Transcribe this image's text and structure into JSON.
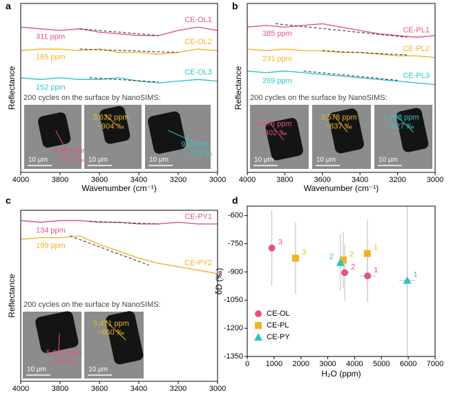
{
  "chart_data": [
    {
      "panel_label": "a",
      "type": "line",
      "xlabel": "Wavenumber (cm⁻¹)",
      "ylabel": "Reflectance",
      "xlim": [
        4000,
        3000
      ],
      "xticks": [
        4000,
        3800,
        3600,
        3400,
        3200,
        3000
      ],
      "ylim": [
        0,
        10
      ],
      "x": [
        4000,
        3900,
        3800,
        3700,
        3600,
        3500,
        3400,
        3300,
        3200,
        3100,
        3000
      ],
      "series": [
        {
          "name": "CE-OL1",
          "color": "#e0577a",
          "ppm_label": "311 ppm",
          "values": [
            8.6,
            8.5,
            8.4,
            8.5,
            8.3,
            8.2,
            8.1,
            8.1,
            8.4,
            8.6,
            8.4
          ],
          "baseline": {
            "x": [
              3700,
              3300
            ],
            "values": [
              8.5,
              8.1
            ]
          }
        },
        {
          "name": "CE-OL2",
          "color": "#f0b323",
          "ppm_label": "165 ppm",
          "values": [
            7.2,
            7.3,
            7.3,
            7.2,
            7.3,
            7.1,
            7.1,
            7.0,
            7.1,
            7.3,
            7.2
          ],
          "baseline": {
            "x": [
              3700,
              3200
            ],
            "values": [
              7.3,
              7.1
            ]
          }
        },
        {
          "name": "CE-OL3",
          "color": "#2ec4c8",
          "ppm_label": "152 ppm",
          "values": [
            5.6,
            5.5,
            5.6,
            5.5,
            5.5,
            5.6,
            5.4,
            5.3,
            5.4,
            5.5,
            5.4
          ],
          "baseline": {
            "x": [
              3650,
              3300
            ],
            "values": [
              5.6,
              5.35
            ]
          }
        }
      ],
      "inset_title": "200 cycles on the surface by NanoSIMS:",
      "insets": [
        {
          "ppm": "4,483 ppm",
          "delta": "−921 ‰",
          "scale_bar": "10 μm"
        },
        {
          "ppm": "3,632 ppm",
          "delta": "−904 ‰",
          "scale_bar": "10 μm"
        },
        {
          "ppm": "916 ppm",
          "delta": "−773 ‰",
          "scale_bar": "10 μm"
        }
      ]
    },
    {
      "panel_label": "b",
      "type": "line",
      "xlabel": "Wavenumber (cm⁻¹)",
      "ylabel": "Reflectance",
      "xlim": [
        4000,
        3000
      ],
      "xticks": [
        4000,
        3800,
        3600,
        3400,
        3200,
        3000
      ],
      "ylim": [
        0,
        10
      ],
      "x": [
        4000,
        3900,
        3800,
        3700,
        3600,
        3500,
        3400,
        3300,
        3200,
        3100,
        3000
      ],
      "series": [
        {
          "name": "CE-PL1",
          "color": "#e0577a",
          "ppm_label": "385 ppm",
          "values": [
            8.6,
            8.7,
            8.6,
            8.7,
            8.8,
            8.6,
            8.4,
            8.2,
            8.1,
            8.0,
            8.1
          ],
          "baseline": {
            "x": [
              3850,
              3150
            ],
            "values": [
              8.8,
              8.0
            ]
          }
        },
        {
          "name": "CE-PL2",
          "color": "#f0b323",
          "ppm_label": "231 ppm",
          "values": [
            7.3,
            7.2,
            7.3,
            7.2,
            7.2,
            7.1,
            7.1,
            7.0,
            6.9,
            6.9,
            6.8
          ],
          "baseline": {
            "x": [
              3600,
              3150
            ],
            "values": [
              7.2,
              6.95
            ]
          }
        },
        {
          "name": "CE-PL3",
          "color": "#2ec4c8",
          "ppm_label": "269 ppm",
          "values": [
            6.0,
            5.9,
            6.0,
            5.9,
            5.8,
            5.7,
            5.6,
            5.5,
            5.4,
            5.3,
            5.2
          ],
          "baseline": {
            "x": [
              3700,
              3200
            ],
            "values": [
              6.0,
              5.45
            ]
          }
        }
      ],
      "inset_title": "200 cycles on the surface by NanoSIMS:",
      "insets": [
        {
          "ppm": "4,476 ppm",
          "delta": "−802 ‰",
          "scale_bar": "10 μm"
        },
        {
          "ppm": "3,578 ppm",
          "delta": "−837 ‰",
          "scale_bar": "10 μm"
        },
        {
          "ppm": "1,798 ppm",
          "delta": "−827 ‰",
          "scale_bar": "10 μm"
        }
      ]
    },
    {
      "panel_label": "c",
      "type": "line",
      "xlabel": "Wavenumber (cm⁻¹)",
      "ylabel": "Reflectance",
      "xlim": [
        4000,
        3000
      ],
      "xticks": [
        4000,
        3800,
        3600,
        3400,
        3200,
        3000
      ],
      "ylim": [
        0,
        10
      ],
      "x": [
        4000,
        3900,
        3800,
        3700,
        3600,
        3500,
        3400,
        3300,
        3200,
        3100,
        3000
      ],
      "series": [
        {
          "name": "CE-PY1",
          "color": "#e0577a",
          "ppm_label": "134 ppm",
          "values": [
            9.4,
            9.3,
            9.4,
            9.4,
            9.3,
            9.3,
            9.2,
            9.2,
            9.3,
            9.2,
            9.2
          ],
          "baseline": {
            "x": [
              3650,
              3300
            ],
            "values": [
              9.35,
              9.2
            ]
          }
        },
        {
          "name": "CE-PY2",
          "color": "#f0b323",
          "ppm_label": "199 ppm",
          "values": [
            8.3,
            8.4,
            8.4,
            8.5,
            8.0,
            7.6,
            7.2,
            6.9,
            6.7,
            6.5,
            6.3
          ],
          "baseline": {
            "x": [
              3750,
              3350
            ],
            "values": [
              8.5,
              6.8
            ]
          }
        }
      ],
      "inset_title": "200 cycles on the surface by NanoSIMS:",
      "insets": [
        {
          "ppm": "5,962 ppm",
          "delta": "−945 ‰",
          "scale_bar": "10 μm"
        },
        {
          "ppm": "3,471 ppm",
          "delta": "−850 ‰",
          "scale_bar": "10 μm"
        }
      ]
    },
    {
      "panel_label": "d",
      "type": "scatter",
      "xlabel": "H₂O (ppm)",
      "ylabel": "δD (‰)",
      "xlim": [
        0,
        7000
      ],
      "xticks": [
        0,
        1000,
        2000,
        3000,
        4000,
        5000,
        6000,
        7000
      ],
      "ylim": [
        -1350,
        -550
      ],
      "yticks": [
        -600,
        -750,
        -900,
        -1050,
        -1200,
        -1350
      ],
      "legend": "lower left",
      "series": [
        {
          "name": "CE-OL",
          "color": "#e0577a",
          "marker": "circle",
          "x": [
            4483,
            3632,
            916
          ],
          "values": [
            -921,
            -904,
            -773
          ],
          "xerr": [
            300,
            150,
            100
          ],
          "yerr": [
            140,
            150,
            200
          ],
          "point_labels": [
            "1",
            "2",
            "3"
          ]
        },
        {
          "name": "CE-PL",
          "color": "#f0b323",
          "marker": "square",
          "x": [
            4476,
            3578,
            1798
          ],
          "values": [
            -802,
            -837,
            -827
          ],
          "xerr": [
            100,
            150,
            100
          ],
          "yerr": [
            180,
            150,
            190
          ],
          "point_labels": [
            "1",
            "2",
            "3"
          ]
        },
        {
          "name": "CE-PY",
          "color": "#2ec4c8",
          "marker": "triangle",
          "x": [
            5962,
            3471
          ],
          "values": [
            -945,
            -850
          ],
          "xerr": [
            300,
            100
          ],
          "yerr": [
            400,
            150
          ],
          "point_labels": [
            "1",
            "2"
          ]
        }
      ]
    }
  ]
}
